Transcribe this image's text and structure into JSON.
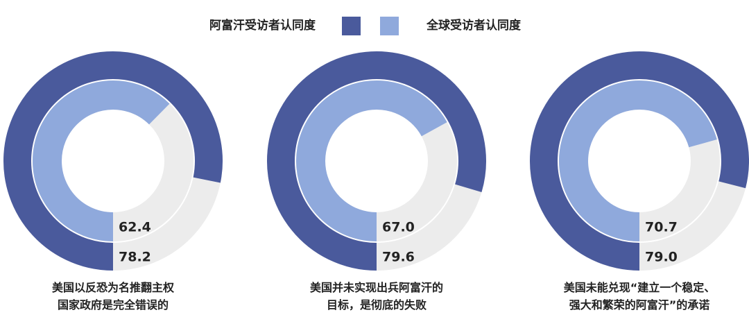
{
  "chart_data": {
    "type": "nested-donut",
    "categories": [
      "美国以反恐为名推翻主权\n国家政府是完全错误的",
      "美国并未实现出兵阿富汗的\n目标，是彻底的失败",
      "美国未能兑现“建立一个稳定、\n强大和繁荣的阿富汗”的承诺"
    ],
    "series": [
      {
        "name": "阿富汗受访者认同度",
        "color": "#4a5a9c",
        "values": [
          78.2,
          79.6,
          79.0
        ]
      },
      {
        "name": "全球受访者认同度",
        "color": "#8fa9dc",
        "values": [
          62.4,
          67.0,
          70.7
        ]
      }
    ],
    "value_labels": [
      [
        "78.2",
        "79.6",
        "79.0"
      ],
      [
        "62.4",
        "67.0",
        "70.7"
      ]
    ],
    "ylim": [
      0,
      100
    ]
  }
}
